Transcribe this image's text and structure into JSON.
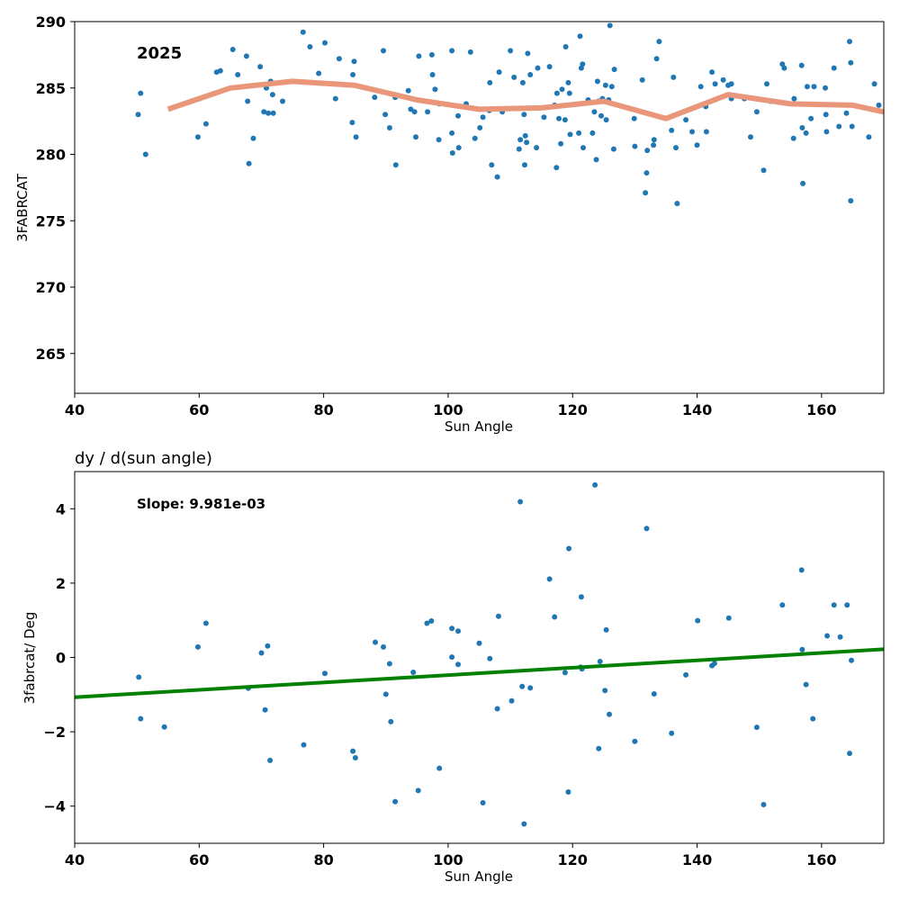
{
  "chart_data": [
    {
      "type": "scatter",
      "title": "",
      "annotation": "2025",
      "xlabel": "Sun Angle",
      "ylabel": "3FABRCAT",
      "xlim": [
        40,
        170
      ],
      "ylim": [
        262,
        290
      ],
      "xticks": [
        40,
        60,
        80,
        100,
        120,
        140,
        160
      ],
      "yticks": [
        265,
        270,
        275,
        280,
        285,
        290
      ],
      "grid": false,
      "point_color": "#1f77b4",
      "trend_color": "#e9967a",
      "points": [
        [
          50.2,
          283.0
        ],
        [
          50.6,
          284.6
        ],
        [
          51.4,
          280.0
        ],
        [
          59.8,
          281.3
        ],
        [
          60.1,
          284.2
        ],
        [
          61.1,
          282.3
        ],
        [
          62.8,
          286.2
        ],
        [
          63.4,
          286.3
        ],
        [
          65.4,
          287.9
        ],
        [
          66.2,
          286.0
        ],
        [
          67.6,
          287.4
        ],
        [
          67.8,
          284.0
        ],
        [
          68.0,
          279.3
        ],
        [
          68.7,
          281.2
        ],
        [
          69.8,
          286.6
        ],
        [
          70.4,
          283.2
        ],
        [
          70.8,
          285.0
        ],
        [
          71.1,
          283.1
        ],
        [
          71.5,
          285.5
        ],
        [
          71.8,
          284.5
        ],
        [
          71.9,
          283.1
        ],
        [
          73.4,
          284.0
        ],
        [
          76.7,
          289.2
        ],
        [
          77.8,
          288.1
        ],
        [
          79.2,
          286.1
        ],
        [
          80.2,
          288.4
        ],
        [
          81.9,
          284.2
        ],
        [
          82.5,
          287.2
        ],
        [
          84.6,
          282.4
        ],
        [
          84.7,
          286.0
        ],
        [
          84.9,
          287.0
        ],
        [
          85.2,
          281.3
        ],
        [
          88.2,
          284.3
        ],
        [
          89.6,
          287.8
        ],
        [
          89.9,
          283.0
        ],
        [
          90.6,
          282.0
        ],
        [
          91.5,
          284.3
        ],
        [
          91.6,
          279.2
        ],
        [
          93.6,
          284.8
        ],
        [
          94.0,
          283.4
        ],
        [
          94.6,
          283.2
        ],
        [
          94.8,
          281.3
        ],
        [
          95.3,
          287.4
        ],
        [
          96.7,
          283.2
        ],
        [
          97.4,
          287.5
        ],
        [
          97.5,
          286.0
        ],
        [
          97.9,
          284.9
        ],
        [
          98.5,
          281.1
        ],
        [
          98.6,
          283.8
        ],
        [
          100.6,
          287.8
        ],
        [
          100.6,
          281.6
        ],
        [
          100.7,
          280.1
        ],
        [
          101.6,
          282.9
        ],
        [
          101.7,
          280.5
        ],
        [
          102.9,
          283.8
        ],
        [
          103.6,
          287.7
        ],
        [
          104.3,
          281.2
        ],
        [
          105.1,
          282.0
        ],
        [
          105.6,
          282.8
        ],
        [
          106.6,
          283.3
        ],
        [
          106.7,
          285.4
        ],
        [
          107.0,
          279.2
        ],
        [
          107.9,
          278.3
        ],
        [
          108.2,
          286.2
        ],
        [
          108.7,
          283.2
        ],
        [
          110.0,
          287.8
        ],
        [
          110.6,
          285.8
        ],
        [
          111.4,
          280.4
        ],
        [
          111.6,
          281.1
        ],
        [
          112.0,
          285.4
        ],
        [
          112.2,
          283.0
        ],
        [
          112.3,
          279.2
        ],
        [
          112.4,
          281.4
        ],
        [
          112.6,
          280.9
        ],
        [
          112.8,
          287.6
        ],
        [
          113.2,
          286.0
        ],
        [
          114.2,
          280.5
        ],
        [
          114.4,
          286.5
        ],
        [
          115.4,
          282.8
        ],
        [
          116.3,
          286.6
        ],
        [
          117.1,
          283.7
        ],
        [
          117.4,
          279.0
        ],
        [
          117.5,
          284.6
        ],
        [
          117.8,
          282.7
        ],
        [
          118.1,
          280.8
        ],
        [
          118.3,
          284.9
        ],
        [
          118.8,
          282.6
        ],
        [
          118.9,
          288.1
        ],
        [
          119.3,
          285.4
        ],
        [
          119.5,
          284.6
        ],
        [
          119.6,
          281.5
        ],
        [
          121.0,
          281.6
        ],
        [
          121.2,
          288.9
        ],
        [
          121.4,
          286.5
        ],
        [
          121.6,
          286.8
        ],
        [
          121.7,
          280.5
        ],
        [
          122.5,
          284.1
        ],
        [
          123.2,
          281.6
        ],
        [
          123.5,
          283.2
        ],
        [
          123.8,
          279.6
        ],
        [
          124.0,
          285.5
        ],
        [
          124.2,
          284.0
        ],
        [
          124.6,
          282.9
        ],
        [
          124.8,
          284.2
        ],
        [
          125.3,
          285.2
        ],
        [
          125.4,
          282.6
        ],
        [
          125.8,
          284.1
        ],
        [
          126.0,
          289.7
        ],
        [
          126.3,
          285.1
        ],
        [
          126.6,
          280.4
        ],
        [
          126.7,
          286.4
        ],
        [
          129.9,
          282.7
        ],
        [
          130.0,
          280.6
        ],
        [
          131.2,
          285.6
        ],
        [
          131.7,
          277.1
        ],
        [
          131.9,
          278.6
        ],
        [
          132.0,
          280.3
        ],
        [
          133.0,
          280.7
        ],
        [
          133.1,
          281.1
        ],
        [
          133.5,
          287.2
        ],
        [
          133.9,
          288.5
        ],
        [
          134.4,
          290.2
        ],
        [
          135.9,
          281.8
        ],
        [
          136.2,
          285.8
        ],
        [
          136.6,
          280.5
        ],
        [
          136.8,
          276.3
        ],
        [
          138.2,
          282.6
        ],
        [
          139.2,
          281.7
        ],
        [
          140.0,
          280.7
        ],
        [
          140.6,
          285.1
        ],
        [
          141.4,
          283.6
        ],
        [
          141.5,
          281.7
        ],
        [
          142.4,
          286.2
        ],
        [
          142.9,
          285.3
        ],
        [
          144.2,
          285.6
        ],
        [
          145.0,
          285.2
        ],
        [
          145.5,
          285.3
        ],
        [
          145.5,
          284.2
        ],
        [
          147.6,
          284.2
        ],
        [
          148.6,
          281.3
        ],
        [
          149.6,
          283.2
        ],
        [
          150.7,
          278.8
        ],
        [
          151.2,
          285.3
        ],
        [
          151.8,
          284.0
        ],
        [
          153.7,
          286.8
        ],
        [
          154.0,
          286.5
        ],
        [
          155.5,
          281.2
        ],
        [
          155.6,
          284.2
        ],
        [
          156.8,
          286.7
        ],
        [
          156.9,
          282.0
        ],
        [
          157.0,
          277.8
        ],
        [
          157.5,
          281.6
        ],
        [
          157.7,
          285.1
        ],
        [
          158.3,
          282.7
        ],
        [
          158.8,
          285.1
        ],
        [
          160.6,
          285.0
        ],
        [
          160.7,
          283.0
        ],
        [
          160.8,
          281.7
        ],
        [
          162.0,
          286.5
        ],
        [
          162.8,
          282.1
        ],
        [
          164.0,
          283.1
        ],
        [
          164.5,
          288.5
        ],
        [
          164.7,
          286.9
        ],
        [
          164.7,
          276.5
        ],
        [
          164.9,
          282.1
        ],
        [
          167.6,
          281.3
        ],
        [
          168.5,
          285.3
        ],
        [
          169.2,
          283.7
        ]
      ],
      "trend": {
        "name": "",
        "x": [
          55,
          65,
          75,
          85,
          95,
          105,
          115,
          125,
          135,
          145,
          155,
          165,
          170
        ],
        "y": [
          283.4,
          285.0,
          285.5,
          285.2,
          284.1,
          283.4,
          283.5,
          284.0,
          282.7,
          284.5,
          283.8,
          283.7,
          283.2
        ]
      }
    },
    {
      "type": "scatter",
      "title": "dy / d(sun angle)",
      "annotation": "Slope: 9.981e-03",
      "xlabel": "Sun Angle",
      "ylabel": "3fabrcat/ Deg",
      "xlim": [
        40,
        170
      ],
      "ylim": [
        -5,
        5
      ],
      "xticks": [
        40,
        60,
        80,
        100,
        120,
        140,
        160
      ],
      "yticks": [
        -4,
        -2,
        0,
        2,
        4
      ],
      "grid": false,
      "point_color": "#1f77b4",
      "fit_color": "#008000",
      "fit_line": {
        "x": [
          40,
          170
        ],
        "y": [
          -1.07,
          0.22
        ]
      },
      "points": [
        [
          50.3,
          -0.53
        ],
        [
          50.6,
          -1.65
        ],
        [
          54.4,
          -1.87
        ],
        [
          59.8,
          0.28
        ],
        [
          61.1,
          0.92
        ],
        [
          67.9,
          -0.83
        ],
        [
          70.0,
          0.12
        ],
        [
          70.6,
          -1.41
        ],
        [
          71.0,
          0.31
        ],
        [
          71.4,
          -2.77
        ],
        [
          76.8,
          -2.35
        ],
        [
          80.2,
          -0.43
        ],
        [
          84.7,
          -2.52
        ],
        [
          85.1,
          -2.7
        ],
        [
          88.3,
          0.41
        ],
        [
          89.6,
          0.28
        ],
        [
          90.0,
          -0.99
        ],
        [
          90.6,
          -0.17
        ],
        [
          90.8,
          -1.73
        ],
        [
          91.5,
          -3.88
        ],
        [
          94.4,
          -0.4
        ],
        [
          95.2,
          -3.58
        ],
        [
          96.6,
          0.92
        ],
        [
          97.3,
          0.98
        ],
        [
          98.6,
          -2.98
        ],
        [
          100.6,
          0.78
        ],
        [
          100.6,
          0.01
        ],
        [
          101.6,
          -0.19
        ],
        [
          101.6,
          0.71
        ],
        [
          105.0,
          0.38
        ],
        [
          105.6,
          -3.91
        ],
        [
          106.7,
          -0.03
        ],
        [
          107.9,
          -1.38
        ],
        [
          108.1,
          1.11
        ],
        [
          110.2,
          -1.17
        ],
        [
          111.6,
          4.19
        ],
        [
          111.9,
          -0.78
        ],
        [
          112.2,
          -4.48
        ],
        [
          113.2,
          -0.82
        ],
        [
          116.3,
          2.11
        ],
        [
          117.1,
          1.09
        ],
        [
          118.8,
          -0.41
        ],
        [
          119.3,
          -3.62
        ],
        [
          119.4,
          2.93
        ],
        [
          121.3,
          -0.26
        ],
        [
          121.4,
          1.63
        ],
        [
          121.5,
          -0.31
        ],
        [
          123.6,
          4.64
        ],
        [
          124.2,
          -2.45
        ],
        [
          124.4,
          -0.11
        ],
        [
          125.2,
          -0.89
        ],
        [
          125.4,
          0.74
        ],
        [
          125.9,
          -1.53
        ],
        [
          130.0,
          -2.26
        ],
        [
          131.9,
          3.47
        ],
        [
          133.1,
          -0.98
        ],
        [
          135.9,
          -2.04
        ],
        [
          138.2,
          -0.47
        ],
        [
          140.1,
          0.99
        ],
        [
          142.4,
          -0.22
        ],
        [
          142.8,
          -0.16
        ],
        [
          145.1,
          1.06
        ],
        [
          149.6,
          -1.88
        ],
        [
          150.7,
          -3.96
        ],
        [
          153.7,
          1.41
        ],
        [
          156.8,
          2.35
        ],
        [
          156.9,
          0.21
        ],
        [
          157.5,
          -0.73
        ],
        [
          158.6,
          -1.65
        ],
        [
          160.9,
          0.58
        ],
        [
          162.0,
          1.41
        ],
        [
          163.0,
          0.55
        ],
        [
          164.1,
          1.41
        ],
        [
          164.5,
          -2.58
        ],
        [
          164.8,
          -0.08
        ]
      ]
    }
  ]
}
